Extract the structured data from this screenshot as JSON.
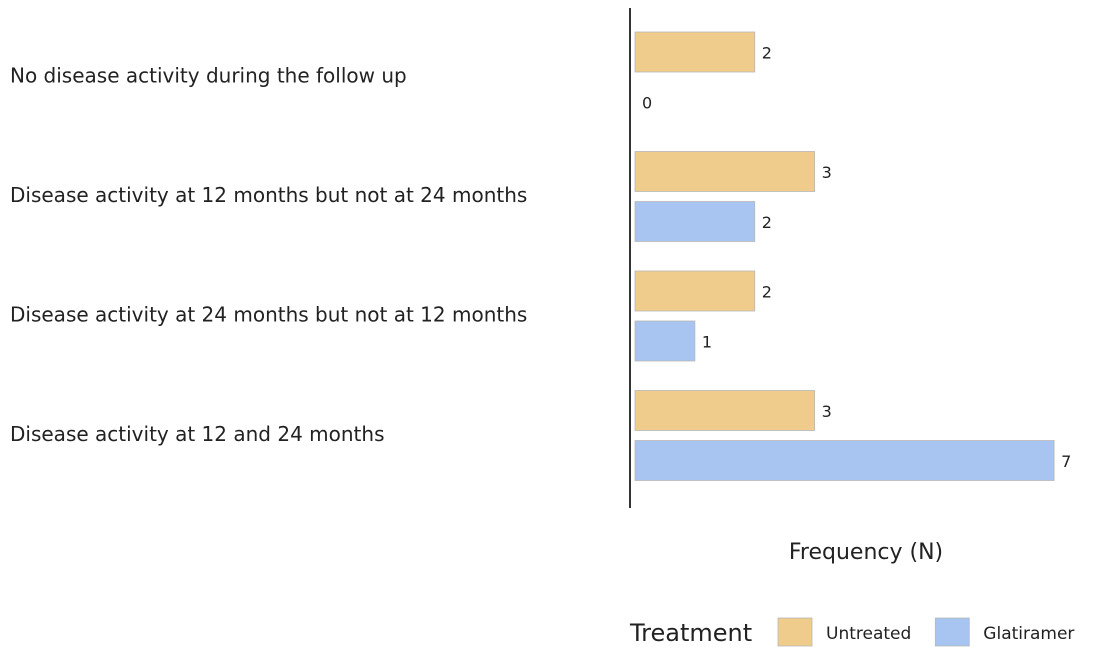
{
  "chart_data": {
    "type": "bar",
    "orientation": "horizontal",
    "categories": [
      "No disease activity during the follow up",
      "Disease activity at 12 months but not at 24 months",
      "Disease activity at 24 months but not at 12 months",
      "Disease activity at 12 and 24 months"
    ],
    "series": [
      {
        "name": "Untreated",
        "color": "#efcb8c",
        "values": [
          2,
          3,
          2,
          3
        ]
      },
      {
        "name": "Glatiramer",
        "color": "#a8c4f0",
        "values": [
          0,
          2,
          1,
          7
        ]
      }
    ],
    "xlabel": "Frequency (N)",
    "legend_title": "Treatment",
    "legend": "bottom",
    "xlim": [
      0,
      7.85
    ]
  }
}
